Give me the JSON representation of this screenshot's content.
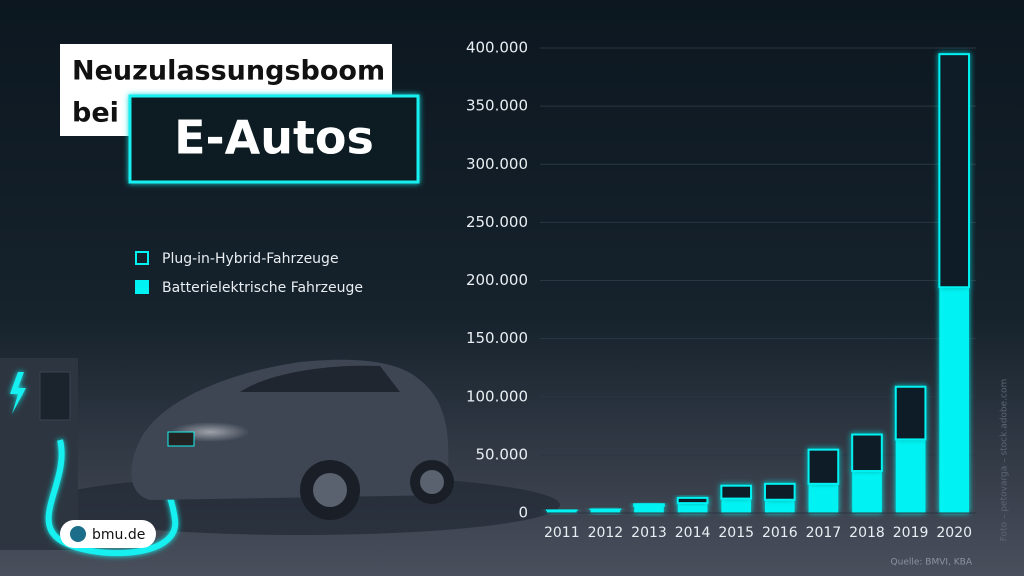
{
  "chart_data": {
    "type": "stacked-bar",
    "title_lines": [
      "Neuzulassungsboom",
      "bei"
    ],
    "title_highlight": "E-Autos",
    "categories": [
      "2011",
      "2012",
      "2013",
      "2014",
      "2015",
      "2016",
      "2017",
      "2018",
      "2019",
      "2020"
    ],
    "series": [
      {
        "name": "Batterielektrische Fahrzeuge",
        "color": "#00f2f2",
        "style": "solid",
        "values": [
          2200,
          3000,
          6100,
          8500,
          12400,
          11400,
          25100,
          36100,
          63300,
          194200
        ]
      },
      {
        "name": "Plug-in-Hybrid-Fahrzeuge",
        "color": "#00f2f2",
        "style": "outline",
        "values": [
          300,
          400,
          1400,
          4500,
          11100,
          13700,
          29400,
          31400,
          45300,
          200500
        ]
      }
    ],
    "ylim": [
      0,
      400000
    ],
    "yticks": [
      0,
      {
        "value": 50000,
        "label": "50.000"
      },
      {
        "value": 100000,
        "label": "100.000"
      },
      {
        "value": 150000,
        "label": "150.000"
      },
      {
        "value": 200000,
        "label": "200.000"
      },
      {
        "value": 250000,
        "label": "250.000"
      },
      {
        "value": 300000,
        "label": "300.000"
      },
      {
        "value": 350000,
        "label": "350.000"
      },
      {
        "value": 400000,
        "label": "400.000"
      }
    ],
    "grid": true,
    "source": "Quelle: BMVI, KBA",
    "credit": "Foto – petovarga – stock.adobe.com",
    "logo": "bmu.de"
  }
}
